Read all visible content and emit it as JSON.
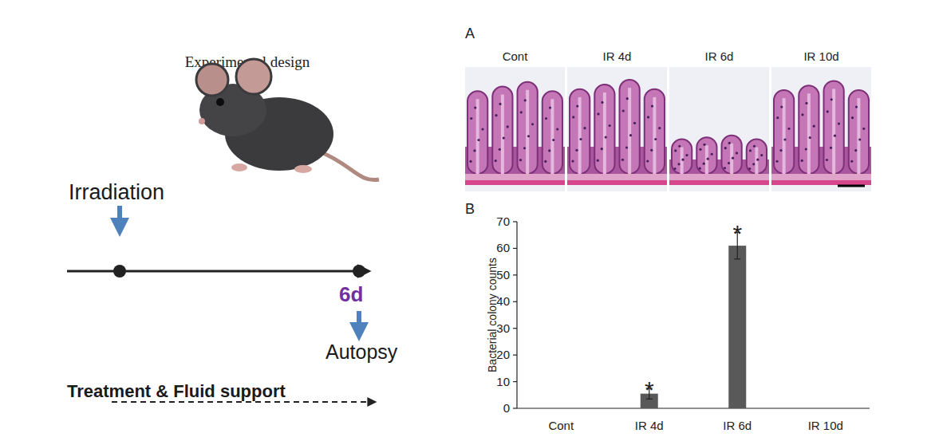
{
  "diagram": {
    "title": "Experimental design",
    "start_label": "Irradiation",
    "time_label": "6d",
    "end_label": "Autopsy",
    "treatment_label": "Treatment & Fluid support"
  },
  "panel_a": {
    "label": "A",
    "columns": [
      "Cont",
      "IR 4d",
      "IR 6d",
      "IR 10d"
    ]
  },
  "chart_data": {
    "type": "bar",
    "panel_label": "B",
    "y_label": "Bacterial colony counts",
    "categories": [
      "Cont",
      "IR 4d",
      "IR 6d",
      "IR 10d"
    ],
    "values": [
      0,
      5.5,
      61,
      0
    ],
    "errors": [
      0,
      2,
      5,
      0
    ],
    "color": "#595959",
    "ylim": [
      0,
      70
    ],
    "yticks": [
      0,
      10,
      20,
      30,
      40,
      50,
      60,
      70
    ],
    "annotations": [
      {
        "category": "IR 4d",
        "text": "*"
      },
      {
        "category": "IR 6d",
        "text": "*"
      }
    ]
  }
}
